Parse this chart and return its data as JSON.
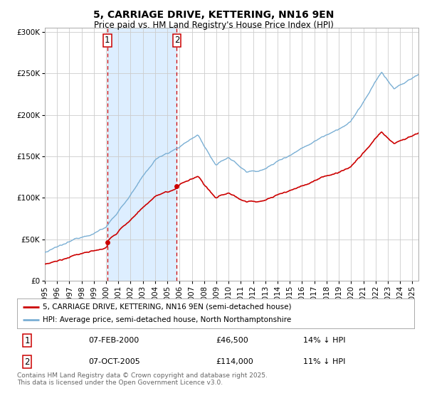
{
  "title": "5, CARRIAGE DRIVE, KETTERING, NN16 9EN",
  "subtitle": "Price paid vs. HM Land Registry's House Price Index (HPI)",
  "ylabel_ticks": [
    "£0",
    "£50K",
    "£100K",
    "£150K",
    "£200K",
    "£250K",
    "£300K"
  ],
  "ytick_values": [
    0,
    50000,
    100000,
    150000,
    200000,
    250000,
    300000
  ],
  "ylim": [
    0,
    305000
  ],
  "xlim_start": 1995.0,
  "xlim_end": 2025.5,
  "t1_year": 2000.1,
  "t1_price": 46500,
  "t1_date": "07-FEB-2000",
  "t1_pct": "14% ↓ HPI",
  "t2_year": 2005.77,
  "t2_price": 114000,
  "t2_date": "07-OCT-2005",
  "t2_pct": "11% ↓ HPI",
  "legend_house": "5, CARRIAGE DRIVE, KETTERING, NN16 9EN (semi-detached house)",
  "legend_hpi": "HPI: Average price, semi-detached house, North Northamptonshire",
  "footnote": "Contains HM Land Registry data © Crown copyright and database right 2025.\nThis data is licensed under the Open Government Licence v3.0.",
  "house_color": "#cc0000",
  "hpi_color": "#7aafd4",
  "vline_color": "#cc0000",
  "shade_color": "#ddeeff",
  "bg_color": "#ffffff",
  "grid_color": "#cccccc",
  "title_fontsize": 10,
  "subtitle_fontsize": 8.5,
  "tick_fontsize": 7.5,
  "legend_fontsize": 7.5,
  "annot_fontsize": 8,
  "footnote_fontsize": 6.5
}
